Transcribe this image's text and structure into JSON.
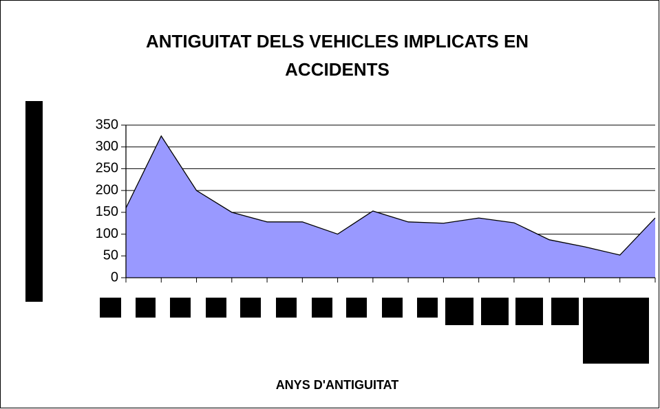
{
  "chart_data": {
    "type": "area",
    "title": "ANTIGUITAT DELS VEHICLES IMPLICATS EN ACCIDENTS",
    "x_label": "ANYS D'ANTIGUITAT",
    "categories": [
      null,
      null,
      null,
      null,
      null,
      null,
      null,
      null,
      null,
      null,
      null,
      null,
      null,
      null,
      null,
      null
    ],
    "values": [
      160,
      325,
      200,
      150,
      128,
      128,
      100,
      153,
      128,
      125,
      137,
      126,
      87,
      71,
      52,
      137
    ],
    "color": "#9999ff",
    "ylim": [
      0,
      350
    ],
    "yticks": [
      0,
      50,
      100,
      150,
      200,
      250,
      300,
      350
    ],
    "grid": true
  }
}
